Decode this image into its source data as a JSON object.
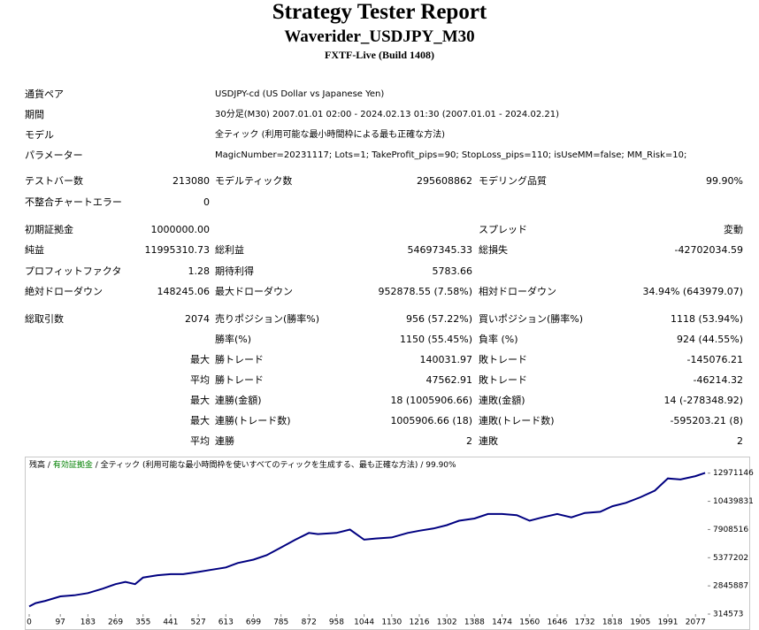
{
  "header": {
    "title": "Strategy Tester Report",
    "subtitle": "Waverider_USDJPY_M30",
    "server": "FXTF-Live (Build 1408)"
  },
  "info": [
    {
      "label": "通貨ペア",
      "value": "USDJPY-cd (US Dollar vs Japanese Yen)"
    },
    {
      "label": "期間",
      "value": "30分足(M30) 2007.01.01 02:00 - 2024.02.13 01:30 (2007.01.01 - 2024.02.21)"
    },
    {
      "label": "モデル",
      "value": "全ティック (利用可能な最小時間枠による最も正確な方法)"
    },
    {
      "label": "パラメーター",
      "value": "MagicNumber=20231117; Lots=1; TakeProfit_pips=90; StopLoss_pips=110; isUseMM=false; MM_Risk=10;"
    }
  ],
  "stats": [
    [
      "テストバー数",
      "213080",
      "モデルティック数",
      "295608862",
      "モデリング品質",
      "99.90%"
    ],
    [
      "不整合チャートエラー",
      "0"
    ],
    [
      "初期証拠金",
      "1000000.00",
      null,
      null,
      "スプレッド",
      "変動"
    ],
    [
      "純益",
      "11995310.73",
      "総利益",
      "54697345.33",
      "総損失",
      "-42702034.59"
    ],
    [
      "プロフィットファクタ",
      "1.28",
      "期待利得",
      "5783.66"
    ],
    [
      "絶対ドローダウン",
      "148245.06",
      "最大ドローダウン",
      "952878.55 (7.58%)",
      "相対ドローダウン",
      "34.94% (643979.07)"
    ],
    [
      "総取引数",
      "2074",
      "売りポジション(勝率%)",
      "956 (57.22%)",
      "買いポジション(勝率%)",
      "1118 (53.94%)"
    ],
    [
      null,
      null,
      "勝率(%)",
      "1150 (55.45%)",
      "負率 (%)",
      "924 (44.55%)"
    ],
    [
      null,
      "最大",
      "勝トレード",
      "140031.97",
      "敗トレード",
      "-145076.21"
    ],
    [
      null,
      "平均",
      "勝トレード",
      "47562.91",
      "敗トレード",
      "-46214.32"
    ],
    [
      null,
      "最大",
      "連勝(金額)",
      "18 (1005906.66)",
      "連敗(金額)",
      "14 (-278348.92)"
    ],
    [
      null,
      "最大",
      "連勝(トレード数)",
      "1005906.66 (18)",
      "連敗(トレード数)",
      "-595203.21 (8)"
    ],
    [
      null,
      "平均",
      "連勝",
      "2",
      "連敗",
      "2"
    ]
  ],
  "chart_data": {
    "type": "line",
    "separator": "/",
    "equity_label": "有効証拠金",
    "model_label": "全ティック (利用可能な最小時間枠を使いすべてのティックを生成する、最も正確な方法)",
    "quality": "99.90%",
    "xlim": [
      0,
      2115
    ],
    "xticks": [
      0,
      97,
      183,
      269,
      355,
      441,
      527,
      613,
      699,
      785,
      872,
      958,
      1044,
      1130,
      1216,
      1302,
      1388,
      1474,
      1560,
      1646,
      1732,
      1818,
      1905,
      1991,
      2077
    ],
    "ylim": [
      314573,
      14300000
    ],
    "yticks": [
      314573,
      2845887,
      5377202,
      7908516,
      10439831,
      12971146
    ],
    "series": [
      {
        "name": "残高",
        "color": "#000080",
        "x": [
          0,
          20,
          50,
          97,
          140,
          183,
          230,
          269,
          300,
          330,
          355,
          400,
          441,
          480,
          527,
          570,
          613,
          650,
          699,
          740,
          785,
          830,
          872,
          900,
          958,
          1000,
          1044,
          1080,
          1130,
          1180,
          1216,
          1260,
          1302,
          1340,
          1388,
          1430,
          1474,
          1520,
          1560,
          1600,
          1646,
          1690,
          1732,
          1780,
          1818,
          1860,
          1905,
          1950,
          1991,
          2030,
          2077,
          2107
        ],
        "values": [
          1000000,
          1300000,
          1500000,
          1900000,
          2000000,
          2200000,
          2600000,
          3000000,
          3200000,
          3000000,
          3600000,
          3800000,
          3900000,
          3900000,
          4100000,
          4300000,
          4500000,
          4900000,
          5200000,
          5600000,
          6300000,
          7000000,
          7600000,
          7500000,
          7600000,
          7900000,
          7000000,
          7100000,
          7200000,
          7600000,
          7800000,
          8000000,
          8300000,
          8700000,
          8900000,
          9300000,
          9300000,
          9200000,
          8700000,
          9000000,
          9300000,
          9000000,
          9400000,
          9500000,
          10000000,
          10300000,
          10800000,
          11400000,
          12500000,
          12400000,
          12700000,
          12995310
        ]
      }
    ]
  }
}
